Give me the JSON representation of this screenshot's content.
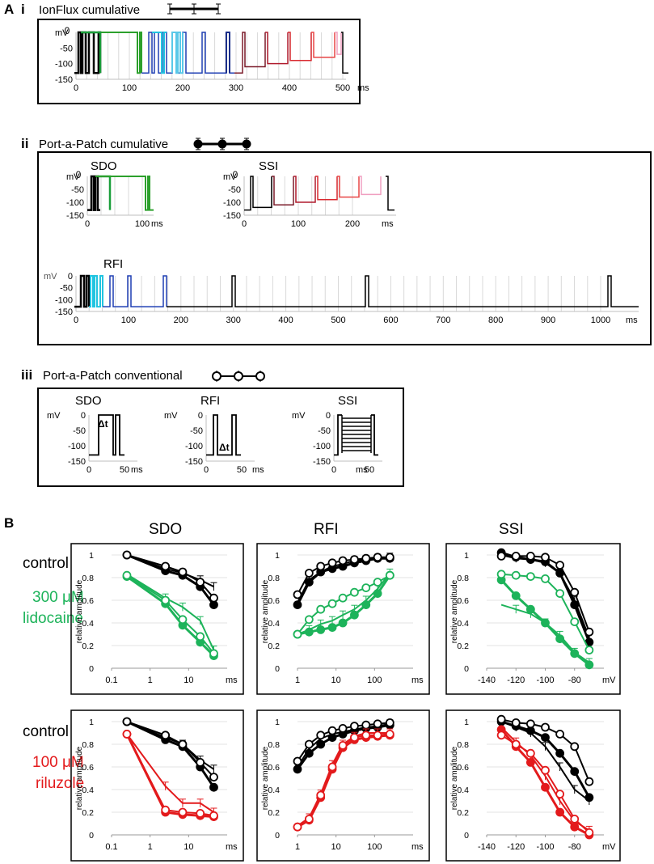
{
  "panelA": {
    "label": "A",
    "i": {
      "roman": "i",
      "title": "IonFlux cumulative",
      "axis": {
        "unit": "mV",
        "zero": "0",
        "yticks": [
          "-50",
          "-100",
          "-150"
        ],
        "xticks": [
          "0",
          "100",
          "200",
          "300",
          "400",
          "500"
        ],
        "xunit": "ms"
      }
    },
    "ii": {
      "roman": "ii",
      "title": "Port-a-Patch cumulative",
      "sdo": {
        "title": "SDO",
        "unit": "mV",
        "zero": "0",
        "yticks": [
          "-50",
          "-100",
          "-150"
        ],
        "xticks": [
          "0",
          "100"
        ],
        "xunit": "ms"
      },
      "ssi": {
        "title": "SSI",
        "unit": "mV",
        "zero": "0",
        "yticks": [
          "-50",
          "-100",
          "-150"
        ],
        "xticks": [
          "0",
          "100",
          "200"
        ],
        "xunit": "ms"
      },
      "rfi": {
        "title": "RFI",
        "unit": "mV",
        "yticks": [
          "0",
          "-50",
          "-100",
          "-150"
        ],
        "xticks": [
          "0",
          "100",
          "200",
          "300",
          "400",
          "500",
          "600",
          "700",
          "800",
          "900",
          "1000"
        ],
        "xunit": "ms"
      }
    },
    "iii": {
      "roman": "iii",
      "title": "Port-a-Patch conventional",
      "sdo": {
        "title": "SDO",
        "unit": "mV",
        "yticks": [
          "0",
          "-50",
          "-100",
          "-150"
        ],
        "xticks": [
          "0",
          "50"
        ],
        "xunit": "ms",
        "delta": "Δt"
      },
      "rfi": {
        "title": "RFI",
        "unit": "mV",
        "yticks": [
          "0",
          "-50",
          "-100",
          "-150"
        ],
        "xticks": [
          "0",
          "50"
        ],
        "xunit": "ms",
        "delta": "Δt"
      },
      "ssi": {
        "title": "SSI",
        "unit": "mV",
        "yticks": [
          "0",
          "-50",
          "-100",
          "-150"
        ],
        "xticks": [
          "0",
          "50"
        ],
        "xunit": "ms"
      }
    }
  },
  "panelB": {
    "label": "B",
    "column_titles": [
      "SDO",
      "RFI",
      "SSI"
    ],
    "row1": {
      "control": "control",
      "drug_conc": "300 μM",
      "drug_name": "lidocaine"
    },
    "row2": {
      "control": "control",
      "drug_conc": "100 μM",
      "drug_name": "riluzole"
    },
    "ylabel": "relative amplitude",
    "yticks": [
      "1",
      "0.8",
      "0.6",
      "0.4",
      "0.2",
      "0"
    ],
    "sdo_xticks": [
      "0.1",
      "1",
      "10"
    ],
    "rfi_xticks": [
      "1",
      "10",
      "100"
    ],
    "ssi_xticks": [
      "-140",
      "-120",
      "-100",
      "-80"
    ],
    "unit_ms": "ms",
    "unit_mv": "mV"
  },
  "colors": {
    "control": "#000000",
    "lidocaine": "#1db35a",
    "riluzole": "#e31a1c"
  },
  "chart_data": [
    {
      "type": "line",
      "title": "SDO",
      "condition": "300 μM lidocaine",
      "xscale": "log",
      "xlabel": "ms",
      "ylabel": "relative amplitude",
      "ylim": [
        0,
        1
      ],
      "series": [
        {
          "name": "control IonFlux",
          "x": [
            0.25,
            2.5,
            7,
            20,
            45
          ],
          "values": [
            1.0,
            0.88,
            0.84,
            0.78,
            0.72
          ]
        },
        {
          "name": "control PaP cumulative",
          "x": [
            0.25,
            2.5,
            7,
            20,
            45
          ],
          "values": [
            1.0,
            0.86,
            0.82,
            0.72,
            0.56
          ]
        },
        {
          "name": "control PaP conventional",
          "x": [
            0.25,
            2.5,
            7,
            20,
            45
          ],
          "values": [
            1.0,
            0.9,
            0.85,
            0.76,
            0.62
          ]
        },
        {
          "name": "lidocaine IonFlux",
          "x": [
            0.25,
            2.5,
            7,
            20,
            45
          ],
          "values": [
            0.83,
            0.62,
            0.54,
            0.42,
            0.16
          ]
        },
        {
          "name": "lidocaine PaP cumulative",
          "x": [
            0.25,
            2.5,
            7,
            20,
            45
          ],
          "values": [
            0.81,
            0.57,
            0.38,
            0.23,
            0.11
          ]
        },
        {
          "name": "lidocaine PaP conventional",
          "x": [
            0.25,
            2.5,
            7,
            20,
            45
          ],
          "values": [
            0.82,
            0.6,
            0.43,
            0.28,
            0.13
          ]
        }
      ]
    },
    {
      "type": "line",
      "title": "RFI",
      "condition": "300 μM lidocaine",
      "xscale": "log",
      "xlabel": "ms",
      "ylabel": "relative amplitude",
      "ylim": [
        0,
        1
      ],
      "series": [
        {
          "name": "control IonFlux",
          "x": [
            1,
            2,
            4,
            8,
            15,
            30,
            60,
            120,
            250
          ],
          "values": [
            0.58,
            0.78,
            0.85,
            0.9,
            0.92,
            0.95,
            0.96,
            0.97,
            0.98
          ]
        },
        {
          "name": "control PaP cumulative",
          "x": [
            1,
            2,
            4,
            8,
            15,
            30,
            60,
            120,
            250
          ],
          "values": [
            0.56,
            0.76,
            0.85,
            0.88,
            0.9,
            0.93,
            0.95,
            0.97,
            0.97
          ]
        },
        {
          "name": "control PaP conventional",
          "x": [
            1,
            2,
            4,
            8,
            15,
            30,
            60,
            120,
            250
          ],
          "values": [
            0.65,
            0.84,
            0.9,
            0.93,
            0.95,
            0.96,
            0.97,
            0.98,
            0.98
          ]
        },
        {
          "name": "lidocaine IonFlux",
          "x": [
            1,
            2,
            4,
            8,
            15,
            30,
            60,
            120,
            250
          ],
          "values": [
            0.3,
            0.34,
            0.39,
            0.42,
            0.47,
            0.52,
            0.6,
            0.7,
            0.84
          ]
        },
        {
          "name": "lidocaine PaP cumulative",
          "x": [
            1,
            2,
            4,
            8,
            15,
            30,
            60,
            120,
            250
          ],
          "values": [
            0.3,
            0.32,
            0.34,
            0.36,
            0.4,
            0.47,
            0.56,
            0.66,
            0.82
          ]
        },
        {
          "name": "lidocaine PaP conventional",
          "x": [
            1,
            2,
            4,
            8,
            15,
            30,
            60,
            120,
            250
          ],
          "values": [
            0.3,
            0.43,
            0.52,
            0.57,
            0.62,
            0.67,
            0.71,
            0.76,
            0.82
          ]
        }
      ]
    },
    {
      "type": "line",
      "title": "SSI",
      "condition": "300 μM lidocaine",
      "xlabel": "mV",
      "ylabel": "relative amplitude",
      "ylim": [
        0,
        1
      ],
      "series": [
        {
          "name": "control IonFlux",
          "x": [
            -130,
            -120,
            -110,
            -100,
            -90,
            -80,
            -70
          ],
          "values": [
            1.0,
            0.97,
            0.96,
            0.93,
            0.84,
            0.6,
            0.27
          ]
        },
        {
          "name": "control PaP cumulative",
          "x": [
            -130,
            -120,
            -110,
            -100,
            -90,
            -80,
            -70
          ],
          "values": [
            1.02,
            0.98,
            0.96,
            0.94,
            0.84,
            0.56,
            0.23
          ]
        },
        {
          "name": "control PaP conventional",
          "x": [
            -130,
            -120,
            -110,
            -100,
            -90,
            -80,
            -70
          ],
          "values": [
            0.99,
            0.99,
            0.99,
            0.98,
            0.91,
            0.67,
            0.32
          ]
        },
        {
          "name": "lidocaine IonFlux",
          "x": [
            -130,
            -120,
            -110,
            -100,
            -90,
            -80,
            -70
          ],
          "values": [
            0.56,
            0.52,
            0.48,
            0.4,
            0.29,
            0.14,
            0.05
          ]
        },
        {
          "name": "lidocaine PaP cumulative",
          "x": [
            -130,
            -120,
            -110,
            -100,
            -90,
            -80,
            -70
          ],
          "values": [
            0.78,
            0.64,
            0.52,
            0.4,
            0.26,
            0.13,
            0.03
          ]
        },
        {
          "name": "lidocaine PaP conventional",
          "x": [
            -130,
            -120,
            -110,
            -100,
            -90,
            -80,
            -70
          ],
          "values": [
            0.83,
            0.82,
            0.81,
            0.79,
            0.66,
            0.41,
            0.16
          ]
        }
      ]
    },
    {
      "type": "line",
      "title": "SDO",
      "condition": "100 μM riluzole",
      "xscale": "log",
      "xlabel": "ms",
      "ylabel": "relative amplitude",
      "ylim": [
        0,
        1
      ],
      "series": [
        {
          "name": "control IonFlux",
          "x": [
            0.25,
            2.5,
            7,
            20,
            45
          ],
          "values": [
            1.0,
            0.86,
            0.8,
            0.66,
            0.58
          ]
        },
        {
          "name": "control PaP cumulative",
          "x": [
            0.25,
            2.5,
            7,
            20,
            45
          ],
          "values": [
            1.0,
            0.84,
            0.78,
            0.6,
            0.42
          ]
        },
        {
          "name": "control PaP conventional",
          "x": [
            0.25,
            2.5,
            7,
            20,
            45
          ],
          "values": [
            1.0,
            0.88,
            0.8,
            0.64,
            0.51
          ]
        },
        {
          "name": "riluzole IonFlux",
          "x": [
            0.25,
            2.5,
            7,
            20,
            45
          ],
          "values": [
            0.89,
            0.43,
            0.28,
            0.28,
            0.2
          ]
        },
        {
          "name": "riluzole PaP cumulative",
          "x": [
            0.25,
            2.5,
            7,
            20,
            45
          ],
          "values": [
            0.89,
            0.2,
            0.18,
            0.17,
            0.16
          ]
        },
        {
          "name": "riluzole PaP conventional",
          "x": [
            0.25,
            2.5,
            7,
            20,
            45
          ],
          "values": [
            0.89,
            0.22,
            0.2,
            0.19,
            0.17
          ]
        }
      ]
    },
    {
      "type": "line",
      "title": "RFI",
      "condition": "100 μM riluzole",
      "xscale": "log",
      "xlabel": "ms",
      "ylabel": "relative amplitude",
      "ylim": [
        0,
        1
      ],
      "series": [
        {
          "name": "control IonFlux",
          "x": [
            1,
            2,
            4,
            8,
            15,
            30,
            60,
            120,
            250
          ],
          "values": [
            0.6,
            0.76,
            0.85,
            0.89,
            0.91,
            0.93,
            0.95,
            0.96,
            0.98
          ]
        },
        {
          "name": "control PaP cumulative",
          "x": [
            1,
            2,
            4,
            8,
            15,
            30,
            60,
            120,
            250
          ],
          "values": [
            0.58,
            0.72,
            0.8,
            0.86,
            0.89,
            0.92,
            0.94,
            0.95,
            0.97
          ]
        },
        {
          "name": "control PaP conventional",
          "x": [
            1,
            2,
            4,
            8,
            15,
            30,
            60,
            120,
            250
          ],
          "values": [
            0.65,
            0.8,
            0.88,
            0.92,
            0.94,
            0.96,
            0.97,
            0.98,
            0.99
          ]
        },
        {
          "name": "riluzole IonFlux",
          "x": [
            1,
            2,
            4,
            8,
            15,
            30,
            60,
            120,
            250
          ],
          "values": [
            0.08,
            0.15,
            0.36,
            0.62,
            0.8,
            0.87,
            0.9,
            0.9,
            0.9
          ]
        },
        {
          "name": "riluzole PaP cumulative",
          "x": [
            1,
            2,
            4,
            8,
            15,
            30,
            60,
            120,
            250
          ],
          "values": [
            0.07,
            0.13,
            0.33,
            0.58,
            0.77,
            0.84,
            0.86,
            0.87,
            0.88
          ]
        },
        {
          "name": "riluzole PaP conventional",
          "x": [
            1,
            2,
            4,
            8,
            15,
            30,
            60,
            120,
            250
          ],
          "values": [
            0.07,
            0.14,
            0.35,
            0.6,
            0.79,
            0.86,
            0.88,
            0.88,
            0.89
          ]
        }
      ]
    },
    {
      "type": "line",
      "title": "SSI",
      "condition": "100 μM riluzole",
      "xlabel": "mV",
      "ylabel": "relative amplitude",
      "ylim": [
        0,
        1
      ],
      "series": [
        {
          "name": "control IonFlux",
          "x": [
            -130,
            -120,
            -110,
            -100,
            -90,
            -80,
            -70
          ],
          "values": [
            1.0,
            0.95,
            0.9,
            0.78,
            0.6,
            0.4,
            0.3
          ]
        },
        {
          "name": "control PaP cumulative",
          "x": [
            -130,
            -120,
            -110,
            -100,
            -90,
            -80,
            -70
          ],
          "values": [
            1.0,
            0.96,
            0.92,
            0.86,
            0.72,
            0.56,
            0.33
          ]
        },
        {
          "name": "control PaP conventional",
          "x": [
            -130,
            -120,
            -110,
            -100,
            -90,
            -80,
            -70
          ],
          "values": [
            1.02,
            0.99,
            0.98,
            0.95,
            0.89,
            0.78,
            0.47
          ]
        },
        {
          "name": "riluzole IonFlux",
          "x": [
            -130,
            -120,
            -110,
            -100,
            -90,
            -80,
            -70
          ],
          "values": [
            0.95,
            0.82,
            0.7,
            0.52,
            0.3,
            0.12,
            0.04
          ]
        },
        {
          "name": "riluzole PaP cumulative",
          "x": [
            -130,
            -120,
            -110,
            -100,
            -90,
            -80,
            -70
          ],
          "values": [
            0.93,
            0.78,
            0.64,
            0.42,
            0.2,
            0.07,
            0.0
          ]
        },
        {
          "name": "riluzole PaP conventional",
          "x": [
            -130,
            -120,
            -110,
            -100,
            -90,
            -80,
            -70
          ],
          "values": [
            0.88,
            0.8,
            0.72,
            0.57,
            0.36,
            0.14,
            0.02
          ]
        }
      ]
    }
  ]
}
